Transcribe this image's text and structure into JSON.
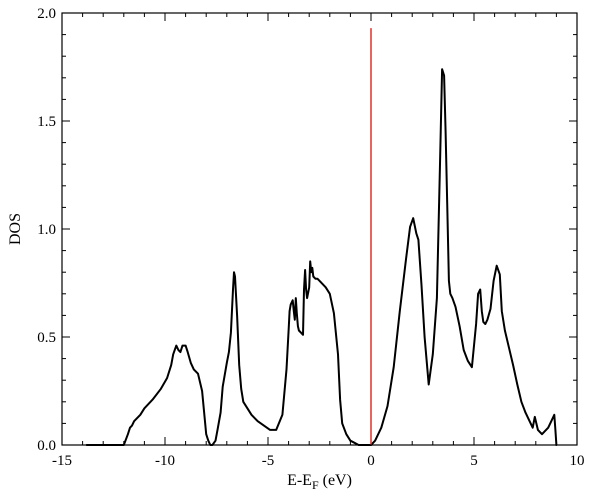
{
  "chart_data": {
    "type": "line",
    "xlabel": "E-E",
    "xlabel_sub": "F",
    "xlabel_unit": " (eV)",
    "ylabel": "DOS",
    "xlim": [
      -15,
      10
    ],
    "ylim": [
      0,
      2
    ],
    "x_ticks": [
      -15,
      -10,
      -5,
      0,
      5,
      10
    ],
    "y_ticks": [
      0,
      0.5,
      1,
      1.5,
      2
    ],
    "x_tick_labels": [
      "-15",
      "-10",
      "-5",
      "0",
      "5",
      "10"
    ],
    "y_tick_labels": [
      "0.0",
      "0.5",
      "1.0",
      "1.5",
      "2.0"
    ],
    "grid": false,
    "line_color": "#000000",
    "fermi_line_color": "#e0322a",
    "fermi_level": 0,
    "fermi_line_top": 1.93,
    "series": [
      {
        "x": [
          -13.8,
          -12.0,
          -11.8,
          -11.7,
          -11.6,
          -11.5,
          -11.2,
          -11.0,
          -10.6,
          -10.2,
          -9.9,
          -9.7,
          -9.6,
          -9.45,
          -9.35,
          -9.25,
          -9.15,
          -9.0,
          -8.9,
          -8.75,
          -8.6,
          -8.4,
          -8.2,
          -8.0,
          -7.9,
          -7.8,
          -7.7,
          -7.55,
          -7.45,
          -7.3,
          -7.2,
          -7.0,
          -6.9,
          -6.8,
          -6.7,
          -6.65,
          -6.6,
          -6.5,
          -6.4,
          -6.3,
          -6.2,
          -6.0,
          -5.8,
          -5.5,
          -5.2,
          -4.9,
          -4.6,
          -4.3,
          -4.1,
          -4.0,
          -3.95,
          -3.9,
          -3.8,
          -3.75,
          -3.7,
          -3.65,
          -3.6,
          -3.55,
          -3.5,
          -3.4,
          -3.3,
          -3.25,
          -3.2,
          -3.15,
          -3.1,
          -3.0,
          -2.95,
          -2.9,
          -2.85,
          -2.8,
          -2.7,
          -2.6,
          -2.5,
          -2.2,
          -2.0,
          -1.8,
          -1.6,
          -1.5,
          -1.4,
          -1.2,
          -1.0,
          -0.8,
          -0.6,
          -0.4,
          -0.2,
          0.0,
          0.2,
          0.5,
          0.8,
          1.1,
          1.4,
          1.7,
          1.9,
          2.05,
          2.2,
          2.3,
          2.45,
          2.6,
          2.8,
          3.0,
          3.2,
          3.35,
          3.45,
          3.55,
          3.62,
          3.7,
          3.78,
          3.85,
          3.95,
          4.1,
          4.3,
          4.5,
          4.7,
          4.9,
          5.1,
          5.2,
          5.3,
          5.38,
          5.45,
          5.55,
          5.65,
          5.8,
          5.95,
          6.1,
          6.25,
          6.35,
          6.5,
          6.7,
          6.9,
          7.1,
          7.3,
          7.5,
          7.7,
          7.85,
          7.95,
          8.1,
          8.3,
          8.6,
          8.8,
          8.9,
          8.95,
          9.0
        ],
        "y": [
          0.0,
          0.0,
          0.05,
          0.08,
          0.09,
          0.11,
          0.14,
          0.17,
          0.21,
          0.26,
          0.31,
          0.37,
          0.42,
          0.46,
          0.44,
          0.43,
          0.46,
          0.46,
          0.43,
          0.38,
          0.35,
          0.33,
          0.25,
          0.05,
          0.02,
          0.0,
          0.0,
          0.02,
          0.07,
          0.15,
          0.27,
          0.38,
          0.43,
          0.52,
          0.72,
          0.8,
          0.78,
          0.6,
          0.37,
          0.26,
          0.2,
          0.17,
          0.14,
          0.11,
          0.09,
          0.07,
          0.07,
          0.14,
          0.35,
          0.53,
          0.62,
          0.65,
          0.67,
          0.62,
          0.58,
          0.68,
          0.61,
          0.55,
          0.53,
          0.52,
          0.51,
          0.72,
          0.81,
          0.72,
          0.68,
          0.73,
          0.85,
          0.8,
          0.82,
          0.78,
          0.77,
          0.77,
          0.76,
          0.73,
          0.7,
          0.61,
          0.42,
          0.21,
          0.1,
          0.05,
          0.02,
          0.01,
          0.0,
          0.0,
          0.0,
          0.0,
          0.02,
          0.08,
          0.18,
          0.36,
          0.62,
          0.86,
          1.01,
          1.05,
          0.98,
          0.95,
          0.74,
          0.5,
          0.28,
          0.42,
          0.68,
          1.3,
          1.74,
          1.71,
          1.45,
          1.12,
          0.76,
          0.7,
          0.68,
          0.64,
          0.55,
          0.44,
          0.39,
          0.36,
          0.56,
          0.7,
          0.72,
          0.62,
          0.57,
          0.56,
          0.58,
          0.63,
          0.76,
          0.83,
          0.79,
          0.62,
          0.53,
          0.45,
          0.37,
          0.28,
          0.2,
          0.15,
          0.11,
          0.08,
          0.13,
          0.07,
          0.05,
          0.08,
          0.12,
          0.14,
          0.07,
          0.0
        ]
      }
    ]
  }
}
